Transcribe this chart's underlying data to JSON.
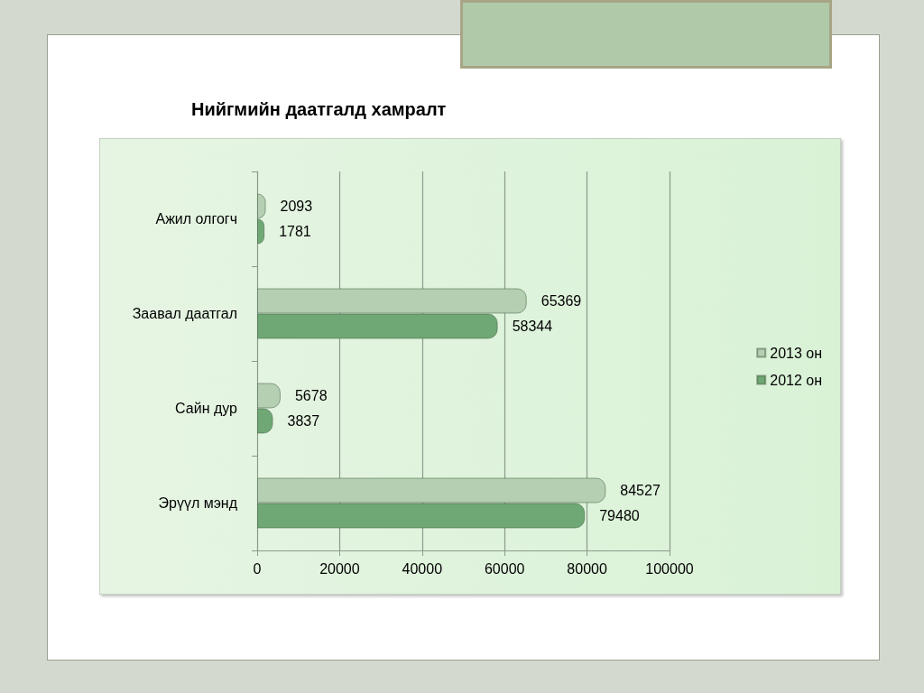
{
  "chart_data": {
    "type": "bar",
    "orientation": "horizontal",
    "title": "Нийгмийн даатгалд хамралт",
    "categories": [
      "Ажил олгогч",
      "Заавал даатгал",
      "Сайн дур",
      "Эрүүл мэнд"
    ],
    "series": [
      {
        "name": "2013 он",
        "color": "#b4cfb2",
        "values": [
          2093,
          65369,
          5678,
          84527
        ]
      },
      {
        "name": "2012 он",
        "color": "#6fa875",
        "values": [
          1781,
          58344,
          3837,
          79480
        ]
      }
    ],
    "xlim": [
      0,
      100000
    ],
    "xticks": [
      0,
      20000,
      40000,
      60000,
      80000,
      100000
    ],
    "grid": "x",
    "legend": "right",
    "data_labels": true
  }
}
